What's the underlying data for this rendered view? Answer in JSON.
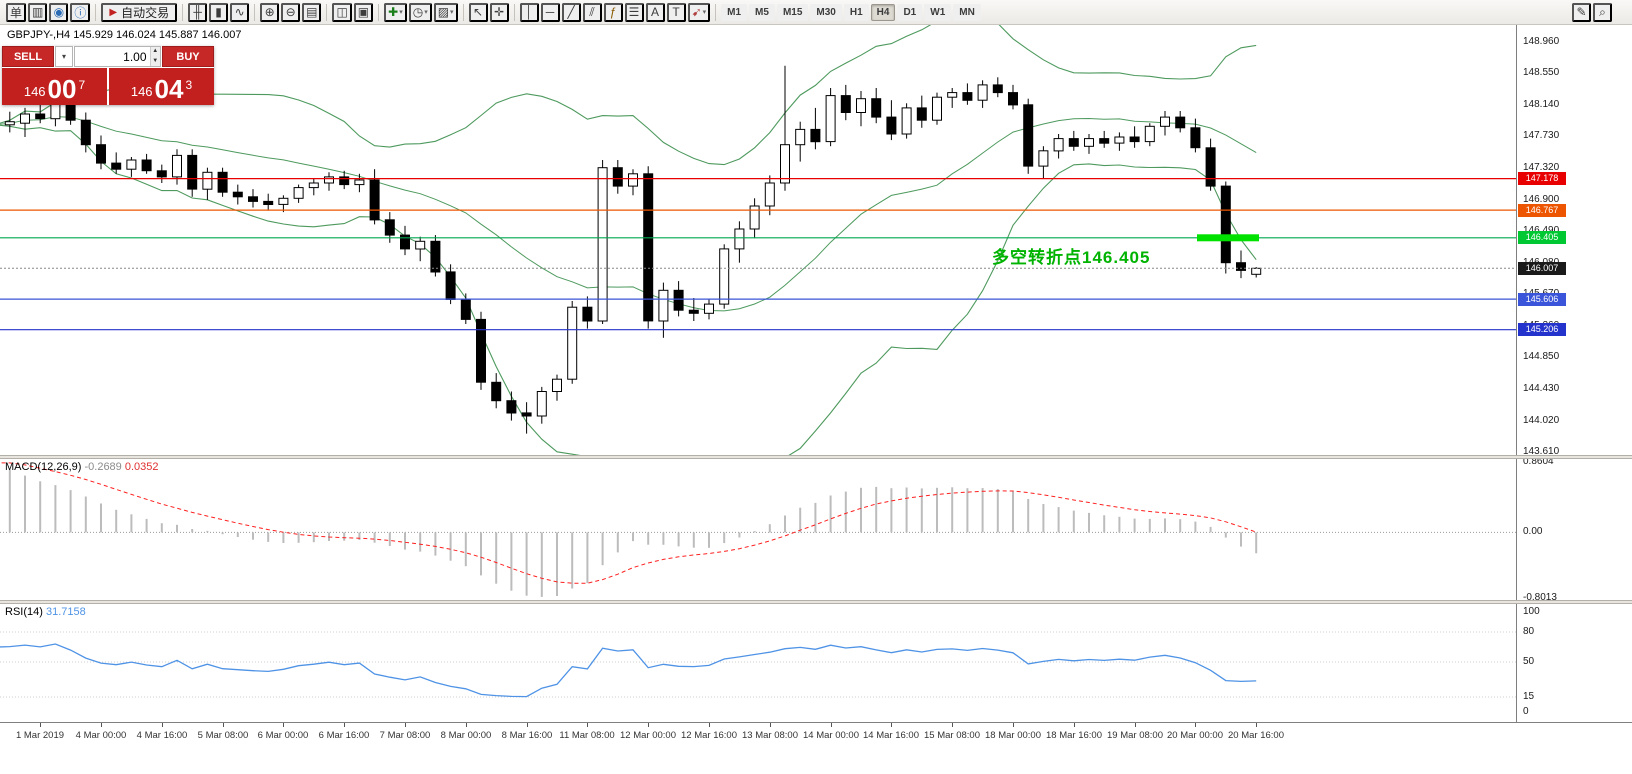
{
  "toolbar": {
    "dd_glyph": "▾",
    "items": [
      {
        "n": "new-order-button",
        "g": "单",
        "kind": "text"
      },
      {
        "n": "market-watch-icon",
        "g": "▥"
      },
      {
        "n": "profile-icon",
        "g": "◉",
        "c": "#2a6bb5"
      },
      {
        "n": "info-icon",
        "g": "ⓘ",
        "c": "#2a6bb5"
      },
      {
        "kind": "sep"
      },
      {
        "n": "autotrade-button",
        "g": "▶",
        "label": "自动交易",
        "kind": "autotrade"
      },
      {
        "kind": "sep"
      },
      {
        "n": "bar-chart-icon",
        "g": "╫"
      },
      {
        "n": "candlestick-chart-icon",
        "g": "▮"
      },
      {
        "n": "line-chart-icon",
        "g": "∿"
      },
      {
        "kind": "sep"
      },
      {
        "n": "zoom-in-icon",
        "g": "⊕"
      },
      {
        "n": "zoom-out-icon",
        "g": "⊖"
      },
      {
        "n": "indicator-windows-icon",
        "g": "▤"
      },
      {
        "kind": "sep"
      },
      {
        "n": "tile-windows-icon",
        "g": "◫"
      },
      {
        "n": "cascade-windows-icon",
        "g": "▣"
      },
      {
        "kind": "sep"
      },
      {
        "n": "add-indicator-icon",
        "g": "✚",
        "c": "#1a7f1a",
        "dd": true
      },
      {
        "n": "period-menu-icon",
        "g": "◷",
        "dd": true
      },
      {
        "n": "template-menu-icon",
        "g": "▨",
        "dd": true
      },
      {
        "kind": "sep"
      },
      {
        "n": "cursor-icon",
        "g": "↖"
      },
      {
        "n": "crosshair-icon",
        "g": "✛"
      },
      {
        "kind": "sep"
      },
      {
        "n": "vertical-line-icon",
        "g": "│"
      },
      {
        "n": "horizontal-line-icon",
        "g": "─"
      },
      {
        "n": "trendline-icon",
        "g": "╱"
      },
      {
        "n": "channel-icon",
        "g": "⫽"
      },
      {
        "n": "fibonacci-icon",
        "g": "ƒ",
        "c": "#8a5a00"
      },
      {
        "n": "levels-icon",
        "g": "☰"
      },
      {
        "n": "text-icon",
        "g": "A"
      },
      {
        "n": "label-icon",
        "g": "T"
      },
      {
        "n": "arrows-icon",
        "g": "➹",
        "c": "#b04040",
        "dd": true
      },
      {
        "kind": "sep"
      }
    ],
    "timeframes": [
      "M1",
      "M5",
      "M15",
      "M30",
      "H1",
      "H4",
      "D1",
      "W1",
      "MN"
    ],
    "active_timeframe": "H4",
    "right_items": [
      {
        "n": "edit-icon",
        "g": "✎"
      },
      {
        "n": "search-icon",
        "g": "⌕"
      }
    ]
  },
  "quote_panel": {
    "sell_label": "SELL",
    "buy_label": "BUY",
    "volume": "1.00",
    "dropdown_glyph": "▾",
    "stepper_up": "▲",
    "stepper_down": "▼",
    "sell_price": {
      "big": "146",
      "pips": "00",
      "pt": "7"
    },
    "buy_price": {
      "big": "146",
      "pips": "04",
      "pt": "3"
    }
  },
  "chart": {
    "header": "GBPJPY-,H4 145.929 146.024 145.887 146.007",
    "annotation": {
      "text": "多空转折点146.405",
      "color": "#00b300"
    },
    "axis_ticks": [
      "148.960",
      "148.550",
      "148.140",
      "147.730",
      "147.320",
      "146.900",
      "146.490",
      "146.080",
      "145.670",
      "145.260",
      "144.850",
      "144.430",
      "144.020",
      "143.610"
    ],
    "levels": [
      {
        "price": 147.178,
        "label": "147.178",
        "color": "#e80000",
        "badge": "#e80000"
      },
      {
        "price": 146.767,
        "label": "146.767",
        "color": "#ee5500",
        "badge": "#ee5500"
      },
      {
        "price": 146.405,
        "label": "146.405",
        "color": "#00a651",
        "badge": "#00c832"
      },
      {
        "price": 145.606,
        "label": "145.606",
        "color": "#3a55d9",
        "badge": "#3a55d9"
      },
      {
        "price": 145.206,
        "label": "145.206",
        "color": "#2433cc",
        "badge": "#2433cc"
      }
    ],
    "current": {
      "price": 146.007,
      "label": "146.007",
      "line_color": "#888888",
      "badge": "#1a1a1a"
    },
    "highlight": {
      "price": 146.405,
      "color": "#00e100"
    },
    "band_color": "#4e9a5e"
  },
  "macd_panel": {
    "name": "MACD(12,26,9)",
    "main": "-0.2689",
    "signal": "0.0352",
    "axis": [
      "0.8604",
      "0.00",
      "-0.8013"
    ],
    "bar_color": "#bcbcbc",
    "signal_color": "#ff2020"
  },
  "rsi_panel": {
    "name": "RSI(14)",
    "value": "31.7158",
    "axis": [
      "100",
      "80",
      "50",
      "15",
      "0"
    ],
    "line_color": "#4f93e6"
  },
  "chart_data": {
    "type": "candlestick",
    "symbol": "GBPJPY-",
    "timeframe": "H4",
    "y_range": [
      143.61,
      148.96
    ],
    "ohlc": [
      [
        147.7,
        147.95,
        147.6,
        147.88
      ],
      [
        147.88,
        148.05,
        147.78,
        147.92
      ],
      [
        147.9,
        148.1,
        147.72,
        148.02
      ],
      [
        148.02,
        148.26,
        147.9,
        147.96
      ],
      [
        147.96,
        148.2,
        147.86,
        148.15
      ],
      [
        148.15,
        148.23,
        147.88,
        147.94
      ],
      [
        147.94,
        148.04,
        147.52,
        147.62
      ],
      [
        147.62,
        147.74,
        147.3,
        147.38
      ],
      [
        147.38,
        147.52,
        147.24,
        147.3
      ],
      [
        147.3,
        147.46,
        147.2,
        147.42
      ],
      [
        147.42,
        147.5,
        147.24,
        147.28
      ],
      [
        147.28,
        147.36,
        147.12,
        147.2
      ],
      [
        147.2,
        147.56,
        147.1,
        147.48
      ],
      [
        147.48,
        147.56,
        146.94,
        147.04
      ],
      [
        147.04,
        147.32,
        146.9,
        147.26
      ],
      [
        147.26,
        147.32,
        146.94,
        147.0
      ],
      [
        147.0,
        147.1,
        146.84,
        146.94
      ],
      [
        146.94,
        147.04,
        146.8,
        146.88
      ],
      [
        146.88,
        146.98,
        146.76,
        146.84
      ],
      [
        146.84,
        146.96,
        146.74,
        146.92
      ],
      [
        146.92,
        147.1,
        146.86,
        147.06
      ],
      [
        147.06,
        147.18,
        146.96,
        147.12
      ],
      [
        147.12,
        147.26,
        147.02,
        147.2
      ],
      [
        147.2,
        147.28,
        147.04,
        147.1
      ],
      [
        147.1,
        147.24,
        147.0,
        147.16
      ],
      [
        147.16,
        147.3,
        146.58,
        146.64
      ],
      [
        146.64,
        146.74,
        146.34,
        146.44
      ],
      [
        146.44,
        146.56,
        146.18,
        146.26
      ],
      [
        146.26,
        146.42,
        146.1,
        146.36
      ],
      [
        146.36,
        146.44,
        145.9,
        145.96
      ],
      [
        145.96,
        146.06,
        145.54,
        145.6
      ],
      [
        145.6,
        145.68,
        145.28,
        145.34
      ],
      [
        145.34,
        145.44,
        144.42,
        144.52
      ],
      [
        144.52,
        144.64,
        144.18,
        144.28
      ],
      [
        144.28,
        144.4,
        144.02,
        144.12
      ],
      [
        144.12,
        144.26,
        143.85,
        144.08
      ],
      [
        144.08,
        144.46,
        143.98,
        144.4
      ],
      [
        144.4,
        144.62,
        144.28,
        144.56
      ],
      [
        144.56,
        145.58,
        144.5,
        145.5
      ],
      [
        145.5,
        145.64,
        145.22,
        145.32
      ],
      [
        145.32,
        147.42,
        145.28,
        147.32
      ],
      [
        147.32,
        147.42,
        146.98,
        147.08
      ],
      [
        147.08,
        147.3,
        146.96,
        147.24
      ],
      [
        147.24,
        147.34,
        145.22,
        145.32
      ],
      [
        145.32,
        145.82,
        145.1,
        145.72
      ],
      [
        145.72,
        145.84,
        145.38,
        145.46
      ],
      [
        145.46,
        145.62,
        145.32,
        145.42
      ],
      [
        145.42,
        145.6,
        145.34,
        145.54
      ],
      [
        145.54,
        146.32,
        145.48,
        146.26
      ],
      [
        146.26,
        146.62,
        146.08,
        146.52
      ],
      [
        146.52,
        146.92,
        146.4,
        146.82
      ],
      [
        146.82,
        147.22,
        146.7,
        147.12
      ],
      [
        147.12,
        148.65,
        147.02,
        147.62
      ],
      [
        147.62,
        147.92,
        147.4,
        147.82
      ],
      [
        147.82,
        148.1,
        147.56,
        147.66
      ],
      [
        147.66,
        148.36,
        147.6,
        148.26
      ],
      [
        148.26,
        148.4,
        147.94,
        148.04
      ],
      [
        148.04,
        148.32,
        147.86,
        148.22
      ],
      [
        148.22,
        148.36,
        147.9,
        147.98
      ],
      [
        147.98,
        148.2,
        147.68,
        147.76
      ],
      [
        147.76,
        148.16,
        147.7,
        148.1
      ],
      [
        148.1,
        148.26,
        147.84,
        147.94
      ],
      [
        147.94,
        148.3,
        147.88,
        148.24
      ],
      [
        148.24,
        148.36,
        148.1,
        148.3
      ],
      [
        148.3,
        148.42,
        148.14,
        148.2
      ],
      [
        148.2,
        148.46,
        148.1,
        148.4
      ],
      [
        148.4,
        148.5,
        148.24,
        148.3
      ],
      [
        148.3,
        148.4,
        148.08,
        148.14
      ],
      [
        148.14,
        148.22,
        147.24,
        147.34
      ],
      [
        147.34,
        147.6,
        147.18,
        147.54
      ],
      [
        147.54,
        147.76,
        147.44,
        147.7
      ],
      [
        147.7,
        147.8,
        147.54,
        147.6
      ],
      [
        147.6,
        147.76,
        147.5,
        147.7
      ],
      [
        147.7,
        147.8,
        147.58,
        147.64
      ],
      [
        147.64,
        147.78,
        147.54,
        147.72
      ],
      [
        147.72,
        147.86,
        147.58,
        147.66
      ],
      [
        147.66,
        147.9,
        147.6,
        147.86
      ],
      [
        147.86,
        148.06,
        147.74,
        147.98
      ],
      [
        147.98,
        148.06,
        147.78,
        147.84
      ],
      [
        147.84,
        147.96,
        147.52,
        147.58
      ],
      [
        147.58,
        147.7,
        147.02,
        147.08
      ],
      [
        147.08,
        147.14,
        145.94,
        146.08
      ],
      [
        146.08,
        146.24,
        145.88,
        145.98
      ],
      [
        145.929,
        146.024,
        145.887,
        146.007
      ]
    ],
    "timeline": [
      "1 Mar 2019",
      "4 Mar 00:00",
      "4 Mar 16:00",
      "5 Mar 08:00",
      "6 Mar 00:00",
      "6 Mar 16:00",
      "7 Mar 08:00",
      "8 Mar 00:00",
      "8 Mar 16:00",
      "11 Mar 08:00",
      "12 Mar 00:00",
      "12 Mar 16:00",
      "13 Mar 08:00",
      "14 Mar 00:00",
      "14 Mar 16:00",
      "15 Mar 08:00",
      "18 Mar 00:00",
      "18 Mar 16:00",
      "19 Mar 08:00",
      "20 Mar 00:00",
      "20 Mar 16:00"
    ],
    "indicators": {
      "bollinger": {
        "period": 20,
        "deviation": 2
      },
      "macd": {
        "fast": 12,
        "slow": 26,
        "signal": 9,
        "current_main": -0.2689,
        "current_signal": 0.0352
      },
      "rsi": {
        "period": 14,
        "current": 31.7158
      }
    },
    "levels": [
      147.178,
      146.767,
      146.405,
      145.606,
      145.206
    ],
    "current_price": 146.007
  }
}
